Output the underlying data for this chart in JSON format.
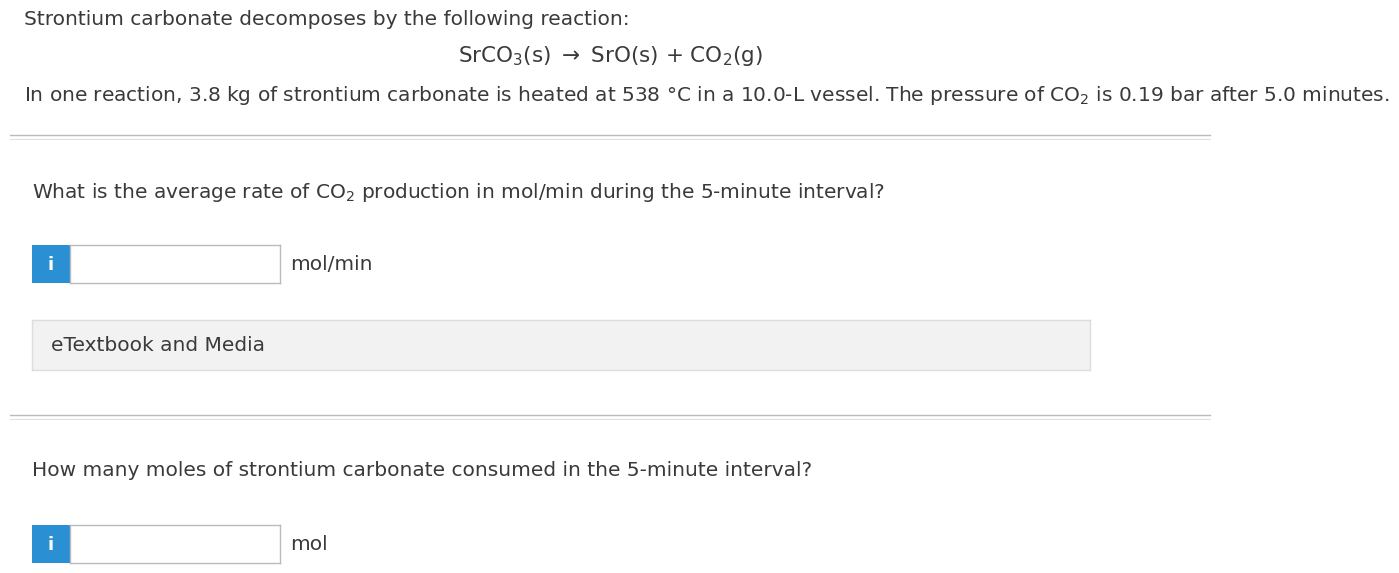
{
  "bg_color": "#ffffff",
  "text_color": "#3a3a3a",
  "line1": "Strontium carbonate decomposes by the following reaction:",
  "eq_text": "SrCO$_3$(s) $\\rightarrow$ SrO(s) + CO$_2$(g)",
  "line3_part1": "In one reaction, 3.8 kg of strontium carbonate is heated at 538 °C in a 10.0-L vessel. The pressure of CO",
  "line3_part2": " is 0.19 bar after 5.0 minutes.",
  "q1": "What is the average rate of CO$_2$ production in mol/min during the 5-minute interval?",
  "q1_unit": "mol/min",
  "etextbook": "eTextbook and Media",
  "q2": "How many moles of strontium carbonate consumed in the 5-minute interval?",
  "q2_unit": "mol",
  "info_btn_color": "#2b8fd4",
  "info_btn_text": "i",
  "input_box_color": "#ffffff",
  "input_border_color": "#bbbbbb",
  "etextbook_bg": "#f2f2f2",
  "etextbook_border": "#dddddd",
  "divider_color_dark": "#bbbbbb",
  "divider_color_light": "#dddddd",
  "font_size_main": 14.5,
  "font_size_reaction": 15.5,
  "font_size_question": 14.5,
  "font_size_unit": 14.5,
  "font_size_etextbook": 14.5
}
